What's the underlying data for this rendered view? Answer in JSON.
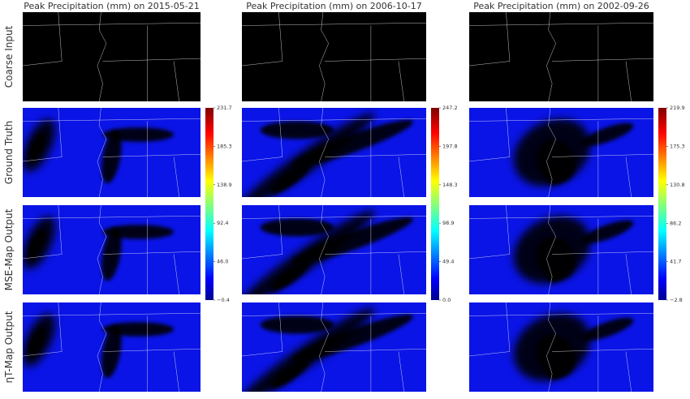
{
  "row_labels": [
    "Coarse Input",
    "Ground Truth",
    "MSE-Map Output",
    "ηT-Map Output"
  ],
  "chart_data": [
    {
      "type": "heatmap",
      "title": "Peak Precipitation (mm) on 2015-05-21",
      "clim": [
        -0.4,
        231.7
      ],
      "cticks": [
        {
          "value": -0.4,
          "label": "−0.4"
        },
        {
          "value": 46,
          "label": "46.0"
        },
        92.4,
        138.9,
        185.3,
        231.7
      ]
    },
    {
      "type": "heatmap",
      "title": "Peak Precipitation (mm) on 2006-10-17",
      "clim": [
        0,
        247.2
      ],
      "cticks": [
        {
          "value": 0,
          "label": "0.0"
        },
        49.4,
        98.9,
        148.3,
        197.8,
        247.2
      ]
    },
    {
      "type": "heatmap",
      "title": "Peak Precipitation (mm) on 2002-09-26",
      "clim": [
        -2.8,
        219.9
      ],
      "cticks": [
        {
          "value": -2.8,
          "label": "−2.8"
        },
        41.7,
        86.2,
        130.8,
        175.3,
        219.9
      ]
    }
  ]
}
